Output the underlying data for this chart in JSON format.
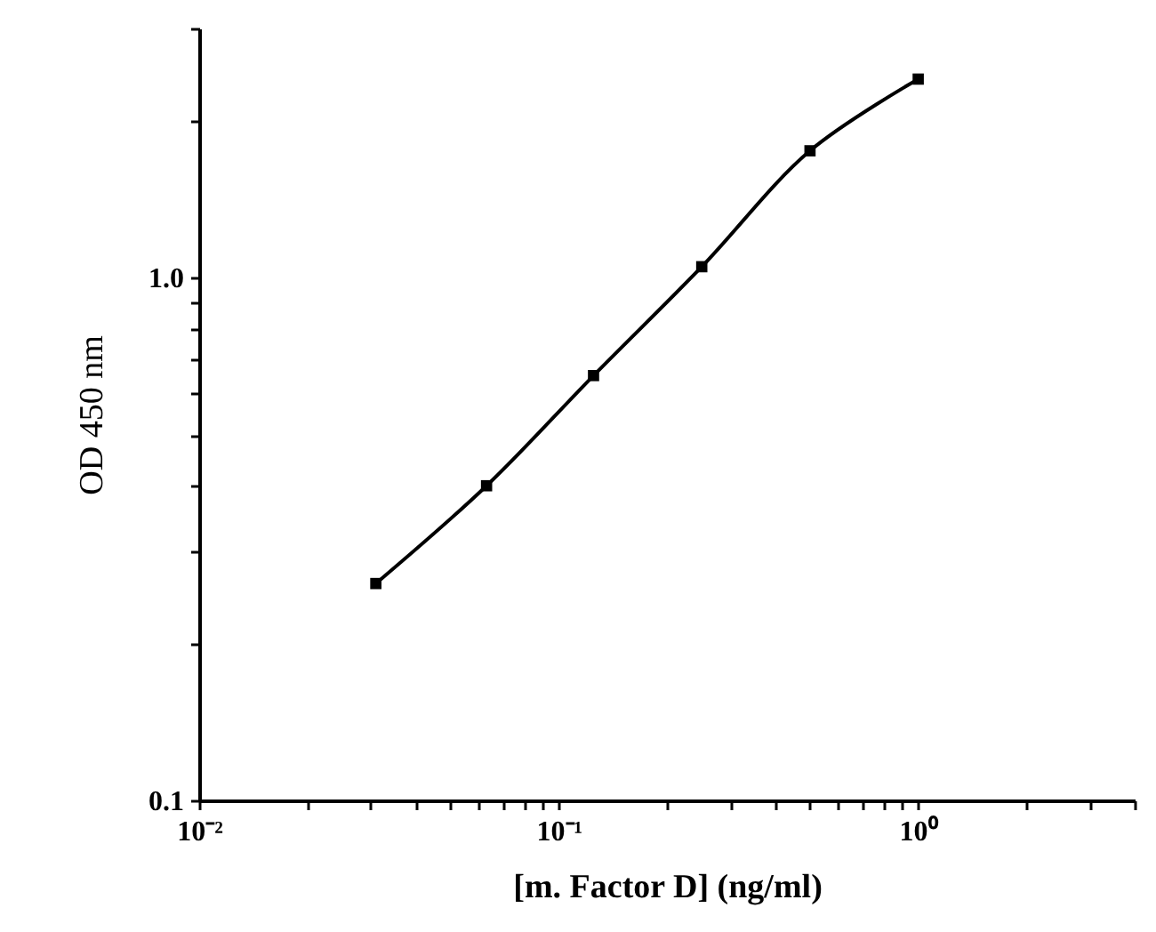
{
  "chart_data": {
    "type": "line",
    "xlabel": "[m. Factor D] (ng/ml)",
    "ylabel": "OD 450 nm",
    "x": [
      0.031,
      0.063,
      0.125,
      0.25,
      0.5,
      1
    ],
    "series": [
      {
        "color": "#000000",
        "values": [
          0.26,
          0.4,
          0.65,
          1.05,
          1.75,
          2.4
        ]
      }
    ],
    "log": "xy",
    "grid": false,
    "marker": "square",
    "line_style": "solid",
    "xlim": [
      0.01,
      4
    ],
    "ylim": [
      0.1,
      3
    ],
    "xticks": [
      {
        "value": 0.01,
        "label": "10⁻²"
      },
      {
        "value": 0.02,
        "label": null
      },
      {
        "value": 0.03,
        "label": null
      },
      {
        "value": 0.04,
        "label": null
      },
      {
        "value": 0.05,
        "label": null
      },
      {
        "value": 0.06,
        "label": null
      },
      {
        "value": 0.07,
        "label": null
      },
      {
        "value": 0.08,
        "label": null
      },
      {
        "value": 0.09,
        "label": null
      },
      {
        "value": 0.1,
        "label": "10⁻¹"
      },
      {
        "value": 0.2,
        "label": null
      },
      {
        "value": 0.3,
        "label": null
      },
      {
        "value": 0.4,
        "label": null
      },
      {
        "value": 0.5,
        "label": null
      },
      {
        "value": 0.6,
        "label": null
      },
      {
        "value": 0.7,
        "label": null
      },
      {
        "value": 0.8,
        "label": null
      },
      {
        "value": 0.9,
        "label": null
      },
      {
        "value": 1,
        "label": "10⁰"
      },
      {
        "value": 2,
        "label": null
      },
      {
        "value": 3,
        "label": null
      },
      {
        "value": 4,
        "label": null
      }
    ],
    "yticks": [
      0.1,
      {
        "value": 0.2,
        "label": null
      },
      {
        "value": 0.3,
        "label": null
      },
      {
        "value": 0.4,
        "label": null
      },
      {
        "value": 0.5,
        "label": null
      },
      {
        "value": 0.6,
        "label": null
      },
      {
        "value": 0.7,
        "label": null
      },
      {
        "value": 0.8,
        "label": null
      },
      {
        "value": 0.9,
        "label": null
      },
      {
        "value": 1,
        "label": "1.0"
      },
      {
        "value": 2,
        "label": null
      },
      {
        "value": 3,
        "label": null
      }
    ]
  }
}
